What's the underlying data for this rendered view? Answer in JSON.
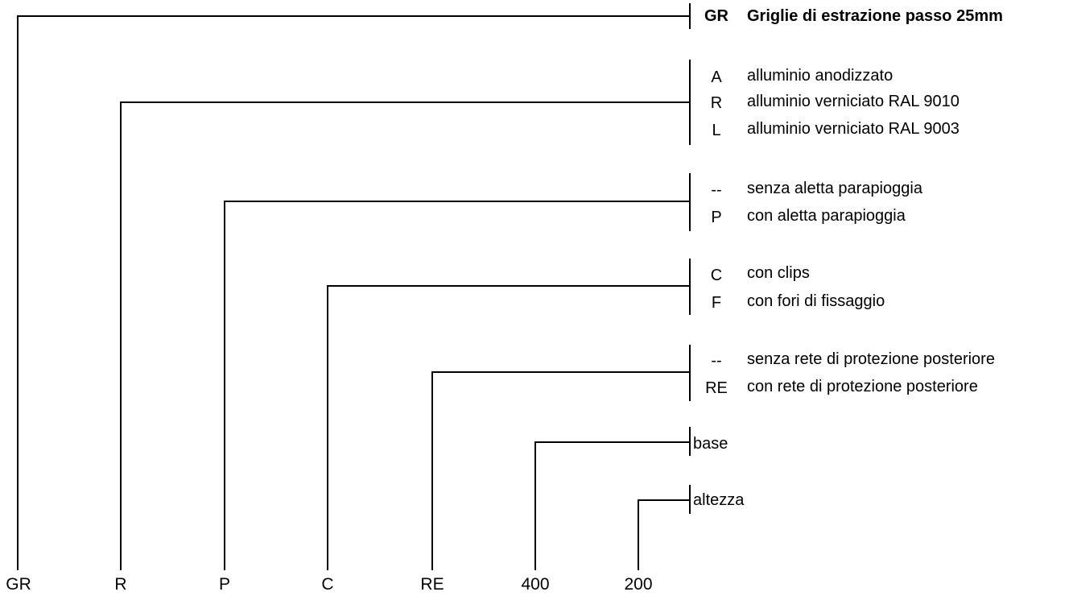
{
  "groups": [
    {
      "options": [
        {
          "code": "GR",
          "text": "Griglie di estrazione passo 25mm"
        }
      ]
    },
    {
      "options": [
        {
          "code": "A",
          "text": "alluminio anodizzato"
        },
        {
          "code": "R",
          "text": "alluminio verniciato RAL 9010"
        },
        {
          "code": "L",
          "text": "alluminio verniciato RAL 9003"
        }
      ]
    },
    {
      "options": [
        {
          "code": "--",
          "text": "senza aletta parapioggia"
        },
        {
          "code": "P",
          "text": "con aletta parapioggia"
        }
      ]
    },
    {
      "options": [
        {
          "code": "C",
          "text": "con clips"
        },
        {
          "code": "F",
          "text": "con fori di fissaggio"
        }
      ]
    },
    {
      "options": [
        {
          "code": "--",
          "text": "senza rete di protezione posteriore"
        },
        {
          "code": "RE",
          "text": "con rete di protezione posteriore"
        }
      ]
    },
    {
      "label": "base"
    },
    {
      "label": "altezza"
    }
  ],
  "code_parts": [
    "GR",
    "R",
    "P",
    "C",
    "RE",
    "400",
    "200"
  ]
}
